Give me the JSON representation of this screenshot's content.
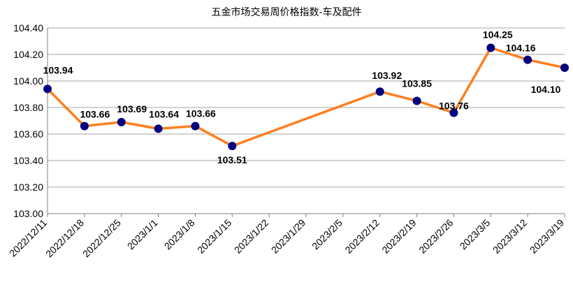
{
  "chart_data": {
    "type": "line",
    "title": "五金市场交易周价格指数-车及配件",
    "xlabel": "",
    "ylabel": "",
    "ylim": [
      103.0,
      104.4
    ],
    "yticks": [
      "103.00",
      "103.20",
      "103.40",
      "103.60",
      "103.80",
      "104.00",
      "104.20",
      "104.40"
    ],
    "grid": "horizontal",
    "legend": "none",
    "categories": [
      "2022/12/11",
      "2022/12/18",
      "2022/12/25",
      "2023/1/1",
      "2023/1/8",
      "2023/1/15",
      "2023/1/22",
      "2023/1/29",
      "2023/2/5",
      "2023/2/12",
      "2023/2/19",
      "2023/2/26",
      "2023/3/5",
      "2023/3/12",
      "2023/3/19"
    ],
    "series": [
      {
        "values": [
          103.94,
          103.66,
          103.69,
          103.64,
          103.66,
          103.51,
          null,
          null,
          null,
          103.92,
          103.85,
          103.76,
          104.25,
          104.16,
          104.1
        ],
        "labels": [
          "103.94",
          "103.66",
          "103.69",
          "103.64",
          "103.66",
          "103.51",
          "",
          "",
          "",
          "103.92",
          "103.85",
          "103.76",
          "104.25",
          "104.16",
          "104.10"
        ],
        "line_color": "#FF7F1F",
        "marker_color": "#000080"
      }
    ]
  }
}
